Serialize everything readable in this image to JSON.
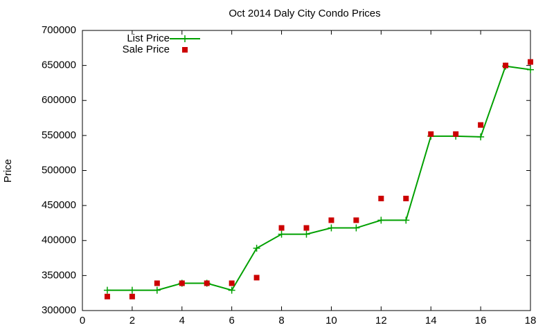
{
  "chart_data": {
    "type": "line",
    "title": "Oct 2014 Daly City Condo Prices",
    "y_label": "Price",
    "x": [
      1,
      2,
      3,
      4,
      5,
      6,
      7,
      8,
      9,
      10,
      11,
      12,
      13,
      14,
      15,
      16,
      17,
      18
    ],
    "series": [
      {
        "name": "List Price",
        "color": "#00a000",
        "style": "linespoints",
        "values": [
          329000,
          329000,
          329000,
          339000,
          339000,
          329000,
          389000,
          409000,
          409000,
          418000,
          418000,
          429000,
          429000,
          549000,
          549000,
          548000,
          649000,
          644000
        ]
      },
      {
        "name": "Sale Price",
        "color": "#cc0000",
        "style": "points",
        "values": [
          320000,
          320000,
          339000,
          339000,
          339000,
          339000,
          347000,
          418000,
          418000,
          429000,
          429000,
          460000,
          460000,
          552000,
          552000,
          565000,
          650000,
          655000
        ]
      }
    ],
    "xlim": [
      0,
      18
    ],
    "xticks": [
      0,
      2,
      4,
      6,
      8,
      10,
      12,
      14,
      16,
      18
    ],
    "ylim": [
      300000,
      700000
    ],
    "yticks": [
      300000,
      350000,
      400000,
      450000,
      500000,
      550000,
      600000,
      650000,
      700000
    ],
    "grid": false,
    "legend": "top-left"
  }
}
